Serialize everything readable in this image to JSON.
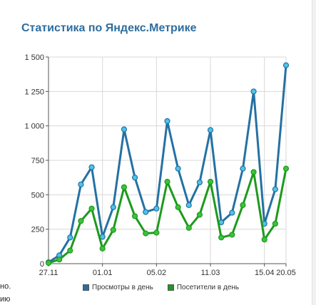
{
  "page": {
    "title": "Статистика по Яндекс.Метрике",
    "left_fragments": [
      "но.",
      "ию"
    ]
  },
  "chart_data": {
    "type": "line",
    "title": "Статистика по Яндекс.Метрике",
    "xlabel": "",
    "ylabel": "",
    "ylim": [
      0,
      1500
    ],
    "y_ticks": [
      "0",
      "250",
      "500",
      "750",
      "1 000",
      "1 250",
      "1 500"
    ],
    "y_tick_values": [
      0,
      250,
      500,
      750,
      1000,
      1250,
      1500
    ],
    "x_ticks": [
      "27.11",
      "01.01",
      "05.02",
      "11.03",
      "15.04",
      "20.05"
    ],
    "x_tick_index": [
      0,
      5,
      10,
      15,
      20,
      25
    ],
    "grid": true,
    "legend_position": "bottom",
    "series": [
      {
        "name": "Просмотры в день",
        "color": "#2471a3",
        "marker_color": "#4fc3e8",
        "values": [
          10,
          60,
          190,
          575,
          700,
          195,
          410,
          975,
          625,
          375,
          400,
          1035,
          690,
          425,
          590,
          970,
          300,
          370,
          690,
          1250,
          290,
          540,
          1440
        ]
      },
      {
        "name": "Посетители в день",
        "color": "#1d9a1d",
        "marker_color": "#3cc23c",
        "values": [
          5,
          30,
          95,
          310,
          400,
          110,
          245,
          555,
          345,
          220,
          225,
          595,
          410,
          260,
          355,
          595,
          190,
          210,
          425,
          665,
          175,
          290,
          690
        ]
      }
    ],
    "x_point_count": 23
  }
}
